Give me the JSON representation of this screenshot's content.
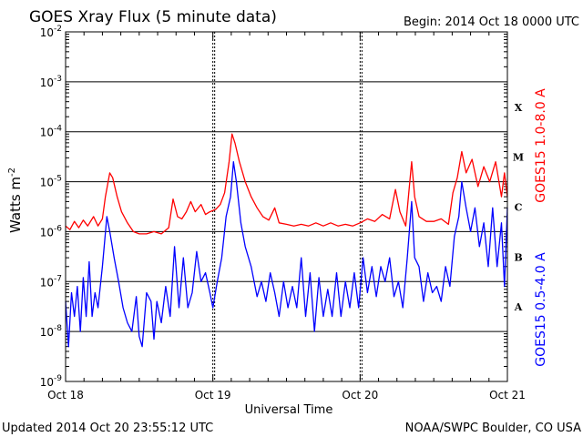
{
  "chart_data": {
    "type": "line",
    "title": "GOES Xray Flux (5 minute data)",
    "begin_label": "Begin:  2014 Oct 18 0000 UTC",
    "xlabel": "Universal Time",
    "ylabel_main": "Watts m",
    "ylabel_exp": "-2",
    "y_scale": "log",
    "ylim": [
      1e-09,
      0.01
    ],
    "y_ticks": [
      {
        "base": "10",
        "exp": "-2",
        "value": 0.01
      },
      {
        "base": "10",
        "exp": "-3",
        "value": 0.001
      },
      {
        "base": "10",
        "exp": "-4",
        "value": 0.0001
      },
      {
        "base": "10",
        "exp": "-5",
        "value": 1e-05
      },
      {
        "base": "10",
        "exp": "-6",
        "value": 1e-06
      },
      {
        "base": "10",
        "exp": "-7",
        "value": 1e-07
      },
      {
        "base": "10",
        "exp": "-8",
        "value": 1e-08
      },
      {
        "base": "10",
        "exp": "-9",
        "value": 1e-09
      }
    ],
    "x_unit": "days since Oct 18 0000 UTC",
    "xlim": [
      0,
      3
    ],
    "x_ticks": [
      {
        "label": "Oct 18",
        "value": 0
      },
      {
        "label": "Oct 19",
        "value": 1
      },
      {
        "label": "Oct 20",
        "value": 2
      },
      {
        "label": "Oct 21",
        "value": 3
      }
    ],
    "flare_classes": [
      {
        "label": "X",
        "value": 0.00031
      },
      {
        "label": "M",
        "value": 3.1e-05
      },
      {
        "label": "C",
        "value": 3.1e-06
      },
      {
        "label": "B",
        "value": 3.1e-07
      },
      {
        "label": "A",
        "value": 3.1e-08
      }
    ],
    "grid": {
      "horizontal": true,
      "vertical_day_markers": true
    },
    "series": [
      {
        "name": "GOES15 1.0-8.0 A",
        "color": "#ff0000",
        "points": [
          [
            0.0,
            1.3e-06
          ],
          [
            0.03,
            1.1e-06
          ],
          [
            0.06,
            1.6e-06
          ],
          [
            0.09,
            1.2e-06
          ],
          [
            0.12,
            1.7e-06
          ],
          [
            0.15,
            1.3e-06
          ],
          [
            0.19,
            2e-06
          ],
          [
            0.22,
            1.3e-06
          ],
          [
            0.25,
            1.8e-06
          ],
          [
            0.27,
            5e-06
          ],
          [
            0.3,
            1.5e-05
          ],
          [
            0.32,
            1.2e-05
          ],
          [
            0.35,
            5e-06
          ],
          [
            0.38,
            2.5e-06
          ],
          [
            0.42,
            1.5e-06
          ],
          [
            0.46,
            1e-06
          ],
          [
            0.5,
            9e-07
          ],
          [
            0.55,
            9e-07
          ],
          [
            0.6,
            1e-06
          ],
          [
            0.65,
            9e-07
          ],
          [
            0.7,
            1.2e-06
          ],
          [
            0.73,
            4.5e-06
          ],
          [
            0.76,
            2e-06
          ],
          [
            0.79,
            1.8e-06
          ],
          [
            0.82,
            2.5e-06
          ],
          [
            0.85,
            4e-06
          ],
          [
            0.88,
            2.5e-06
          ],
          [
            0.92,
            3.5e-06
          ],
          [
            0.95,
            2.2e-06
          ],
          [
            0.98,
            2.5e-06
          ],
          [
            1.02,
            2.8e-06
          ],
          [
            1.05,
            3.5e-06
          ],
          [
            1.08,
            6e-06
          ],
          [
            1.11,
            2.5e-05
          ],
          [
            1.13,
            9e-05
          ],
          [
            1.15,
            6e-05
          ],
          [
            1.18,
            2.5e-05
          ],
          [
            1.22,
            1e-05
          ],
          [
            1.26,
            5e-06
          ],
          [
            1.3,
            3e-06
          ],
          [
            1.34,
            2e-06
          ],
          [
            1.38,
            1.7e-06
          ],
          [
            1.42,
            3e-06
          ],
          [
            1.45,
            1.5e-06
          ],
          [
            1.5,
            1.4e-06
          ],
          [
            1.55,
            1.3e-06
          ],
          [
            1.6,
            1.4e-06
          ],
          [
            1.65,
            1.3e-06
          ],
          [
            1.7,
            1.5e-06
          ],
          [
            1.75,
            1.3e-06
          ],
          [
            1.8,
            1.5e-06
          ],
          [
            1.85,
            1.3e-06
          ],
          [
            1.9,
            1.4e-06
          ],
          [
            1.95,
            1.3e-06
          ],
          [
            2.0,
            1.5e-06
          ],
          [
            2.05,
            1.8e-06
          ],
          [
            2.1,
            1.6e-06
          ],
          [
            2.15,
            2.2e-06
          ],
          [
            2.2,
            1.8e-06
          ],
          [
            2.24,
            7e-06
          ],
          [
            2.27,
            2.5e-06
          ],
          [
            2.31,
            1.3e-06
          ],
          [
            2.35,
            2.5e-05
          ],
          [
            2.37,
            5e-06
          ],
          [
            2.4,
            2e-06
          ],
          [
            2.45,
            1.6e-06
          ],
          [
            2.5,
            1.6e-06
          ],
          [
            2.55,
            1.8e-06
          ],
          [
            2.6,
            1.4e-06
          ],
          [
            2.63,
            6e-06
          ],
          [
            2.66,
            1.2e-05
          ],
          [
            2.69,
            4e-05
          ],
          [
            2.72,
            1.5e-05
          ],
          [
            2.76,
            2.8e-05
          ],
          [
            2.8,
            8e-06
          ],
          [
            2.84,
            2e-05
          ],
          [
            2.88,
            1e-05
          ],
          [
            2.92,
            2.5e-05
          ],
          [
            2.96,
            5e-06
          ],
          [
            2.98,
            1.5e-05
          ],
          [
            3.0,
            5e-06
          ]
        ]
      },
      {
        "name": "GOES15 0.5-4.0 A",
        "color": "#0000ff",
        "points": [
          [
            0.0,
            4e-08
          ],
          [
            0.02,
            5e-09
          ],
          [
            0.04,
            6e-08
          ],
          [
            0.06,
            2e-08
          ],
          [
            0.08,
            8e-08
          ],
          [
            0.1,
            1e-08
          ],
          [
            0.12,
            1.2e-07
          ],
          [
            0.14,
            2e-08
          ],
          [
            0.16,
            2.5e-07
          ],
          [
            0.18,
            2e-08
          ],
          [
            0.2,
            6e-08
          ],
          [
            0.22,
            3e-08
          ],
          [
            0.25,
            2e-07
          ],
          [
            0.28,
            2e-06
          ],
          [
            0.3,
            1e-06
          ],
          [
            0.33,
            3e-07
          ],
          [
            0.36,
            1e-07
          ],
          [
            0.39,
            3e-08
          ],
          [
            0.42,
            1.5e-08
          ],
          [
            0.45,
            1e-08
          ],
          [
            0.48,
            5e-08
          ],
          [
            0.5,
            8e-09
          ],
          [
            0.52,
            5e-09
          ],
          [
            0.55,
            6e-08
          ],
          [
            0.58,
            4e-08
          ],
          [
            0.6,
            7e-09
          ],
          [
            0.62,
            4e-08
          ],
          [
            0.65,
            1.5e-08
          ],
          [
            0.68,
            8e-08
          ],
          [
            0.71,
            2e-08
          ],
          [
            0.74,
            5e-07
          ],
          [
            0.77,
            3e-08
          ],
          [
            0.8,
            3e-07
          ],
          [
            0.83,
            3e-08
          ],
          [
            0.86,
            6e-08
          ],
          [
            0.89,
            4e-07
          ],
          [
            0.92,
            1e-07
          ],
          [
            0.95,
            1.5e-07
          ],
          [
            0.98,
            6e-08
          ],
          [
            1.0,
            3e-08
          ],
          [
            1.03,
            1e-07
          ],
          [
            1.06,
            3e-07
          ],
          [
            1.09,
            2e-06
          ],
          [
            1.12,
            5e-06
          ],
          [
            1.14,
            2.5e-05
          ],
          [
            1.16,
            1e-05
          ],
          [
            1.19,
            1.5e-06
          ],
          [
            1.22,
            5e-07
          ],
          [
            1.26,
            2e-07
          ],
          [
            1.3,
            5e-08
          ],
          [
            1.33,
            1e-07
          ],
          [
            1.36,
            4e-08
          ],
          [
            1.39,
            1.5e-07
          ],
          [
            1.42,
            6e-08
          ],
          [
            1.45,
            2e-08
          ],
          [
            1.48,
            1e-07
          ],
          [
            1.51,
            3e-08
          ],
          [
            1.54,
            8e-08
          ],
          [
            1.57,
            3e-08
          ],
          [
            1.6,
            3e-07
          ],
          [
            1.63,
            2e-08
          ],
          [
            1.66,
            1.5e-07
          ],
          [
            1.69,
            1e-08
          ],
          [
            1.72,
            1.2e-07
          ],
          [
            1.75,
            2e-08
          ],
          [
            1.78,
            7e-08
          ],
          [
            1.81,
            2e-08
          ],
          [
            1.84,
            1.5e-07
          ],
          [
            1.87,
            2e-08
          ],
          [
            1.9,
            1e-07
          ],
          [
            1.93,
            3e-08
          ],
          [
            1.96,
            1.5e-07
          ],
          [
            1.99,
            3e-08
          ],
          [
            2.02,
            3e-07
          ],
          [
            2.05,
            6e-08
          ],
          [
            2.08,
            2e-07
          ],
          [
            2.11,
            5e-08
          ],
          [
            2.14,
            2e-07
          ],
          [
            2.17,
            1e-07
          ],
          [
            2.2,
            3e-07
          ],
          [
            2.23,
            5e-08
          ],
          [
            2.26,
            1e-07
          ],
          [
            2.29,
            3e-08
          ],
          [
            2.32,
            3e-07
          ],
          [
            2.35,
            4e-06
          ],
          [
            2.37,
            3e-07
          ],
          [
            2.4,
            2e-07
          ],
          [
            2.43,
            4e-08
          ],
          [
            2.46,
            1.5e-07
          ],
          [
            2.49,
            6e-08
          ],
          [
            2.52,
            8e-08
          ],
          [
            2.55,
            4e-08
          ],
          [
            2.58,
            2e-07
          ],
          [
            2.61,
            8e-08
          ],
          [
            2.64,
            8e-07
          ],
          [
            2.67,
            2e-06
          ],
          [
            2.69,
            1e-05
          ],
          [
            2.72,
            3e-06
          ],
          [
            2.75,
            1e-06
          ],
          [
            2.78,
            3e-06
          ],
          [
            2.81,
            5e-07
          ],
          [
            2.84,
            1.5e-06
          ],
          [
            2.87,
            2e-07
          ],
          [
            2.9,
            3e-06
          ],
          [
            2.93,
            2e-07
          ],
          [
            2.96,
            1.5e-06
          ],
          [
            2.98,
            8e-08
          ],
          [
            3.0,
            3e-06
          ]
        ]
      }
    ]
  },
  "footer": {
    "updated": "Updated 2014 Oct 20 23:55:12 UTC",
    "source": "NOAA/SWPC Boulder, CO USA"
  }
}
